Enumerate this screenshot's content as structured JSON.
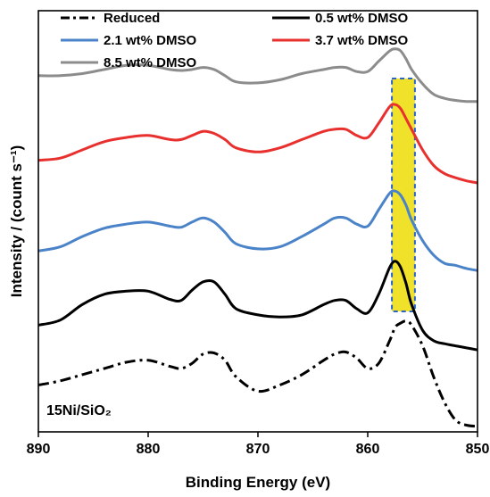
{
  "chart_data": {
    "type": "line",
    "xlabel": "Binding Energy (eV)",
    "ylabel": "Intensity / (count s⁻¹)",
    "xlim": [
      890,
      850
    ],
    "x_reversed": true,
    "y_ticks_shown": false,
    "xticks": [
      890,
      880,
      870,
      860,
      850
    ],
    "panel_label": "15Ni/SiO₂",
    "legend_position": "top (3 rows, 2 columns)",
    "highlight": {
      "x_range": [
        855.7,
        857.8
      ],
      "color": "#f0e12a",
      "border_color": "#2b63c7",
      "border_style": "dashed"
    },
    "series": [
      {
        "name": "Reduced",
        "color": "#000000",
        "dash": "dash-dot",
        "x": [
          890,
          888,
          886,
          884,
          882,
          880,
          878,
          877,
          876,
          875,
          874,
          873,
          872,
          870,
          868,
          866,
          864,
          863,
          862,
          861,
          860,
          859,
          858,
          857.5,
          857,
          856.5,
          856,
          855,
          854,
          853,
          852,
          851,
          850
        ],
        "y": [
          0.42,
          0.46,
          0.52,
          0.58,
          0.64,
          0.66,
          0.6,
          0.58,
          0.63,
          0.72,
          0.73,
          0.66,
          0.5,
          0.36,
          0.42,
          0.52,
          0.66,
          0.72,
          0.74,
          0.68,
          0.58,
          0.63,
          0.85,
          0.98,
          1.02,
          1.04,
          1.0,
          0.8,
          0.5,
          0.25,
          0.08,
          0.03,
          0.02
        ]
      },
      {
        "name": "0.5 wt% DMSO",
        "color": "#000000",
        "dash": "solid",
        "x": [
          890,
          888,
          886,
          884,
          882,
          880,
          878,
          877,
          876,
          875,
          874,
          873,
          872,
          870,
          868,
          866,
          864,
          863,
          862,
          861,
          860,
          859,
          858,
          857.5,
          857,
          856.5,
          856,
          855,
          854,
          853,
          852,
          851,
          850
        ],
        "y": [
          1.0,
          1.05,
          1.2,
          1.3,
          1.33,
          1.33,
          1.25,
          1.24,
          1.34,
          1.42,
          1.42,
          1.3,
          1.16,
          1.1,
          1.08,
          1.1,
          1.2,
          1.24,
          1.24,
          1.16,
          1.12,
          1.3,
          1.56,
          1.62,
          1.56,
          1.4,
          1.2,
          0.95,
          0.85,
          0.82,
          0.8,
          0.78,
          0.76
        ]
      },
      {
        "name": "2.1 wt% DMSO",
        "color": "#4b83c9",
        "dash": "solid",
        "x": [
          890,
          888,
          886,
          884,
          882,
          880,
          878,
          877,
          876,
          875,
          874,
          873,
          872,
          870,
          868,
          866,
          864,
          863,
          862,
          861,
          860,
          859,
          858,
          857.5,
          857,
          856.5,
          856,
          855,
          854,
          853,
          852,
          851,
          850
        ],
        "y": [
          1.72,
          1.76,
          1.86,
          1.94,
          1.98,
          2.0,
          1.96,
          1.95,
          2.0,
          2.04,
          2.0,
          1.9,
          1.79,
          1.74,
          1.76,
          1.86,
          1.98,
          2.04,
          2.04,
          1.98,
          1.96,
          2.12,
          2.28,
          2.3,
          2.26,
          2.16,
          2.02,
          1.82,
          1.68,
          1.6,
          1.58,
          1.55,
          1.53
        ]
      },
      {
        "name": "3.7 wt% DMSO",
        "color": "#e8302e",
        "dash": "solid",
        "x": [
          890,
          888,
          886,
          884,
          882,
          880,
          878,
          877,
          876,
          875,
          874,
          873,
          872,
          870,
          868,
          866,
          864,
          863,
          862,
          861,
          860,
          859,
          858,
          857.5,
          857,
          856.5,
          856,
          855,
          854,
          853,
          852,
          851,
          850
        ],
        "y": [
          2.6,
          2.62,
          2.7,
          2.78,
          2.82,
          2.84,
          2.8,
          2.8,
          2.84,
          2.88,
          2.86,
          2.8,
          2.72,
          2.68,
          2.72,
          2.8,
          2.88,
          2.9,
          2.9,
          2.84,
          2.82,
          2.96,
          3.12,
          3.14,
          3.1,
          3.0,
          2.9,
          2.7,
          2.55,
          2.47,
          2.43,
          2.4,
          2.38
        ]
      },
      {
        "name": "8.5 wt% DMSO",
        "color": "#8c8c8c",
        "dash": "solid",
        "x": [
          890,
          888,
          886,
          884,
          882,
          880,
          878,
          877,
          876,
          875,
          874,
          873,
          872,
          870,
          868,
          866,
          864,
          863,
          862,
          861,
          860,
          859,
          858,
          857.5,
          857,
          856.5,
          856,
          855,
          854,
          853,
          852,
          851,
          850
        ],
        "y": [
          3.42,
          3.42,
          3.44,
          3.48,
          3.52,
          3.52,
          3.48,
          3.47,
          3.48,
          3.5,
          3.48,
          3.42,
          3.36,
          3.35,
          3.38,
          3.44,
          3.48,
          3.5,
          3.5,
          3.46,
          3.46,
          3.56,
          3.66,
          3.68,
          3.66,
          3.58,
          3.48,
          3.34,
          3.24,
          3.2,
          3.18,
          3.17,
          3.17
        ]
      }
    ]
  }
}
